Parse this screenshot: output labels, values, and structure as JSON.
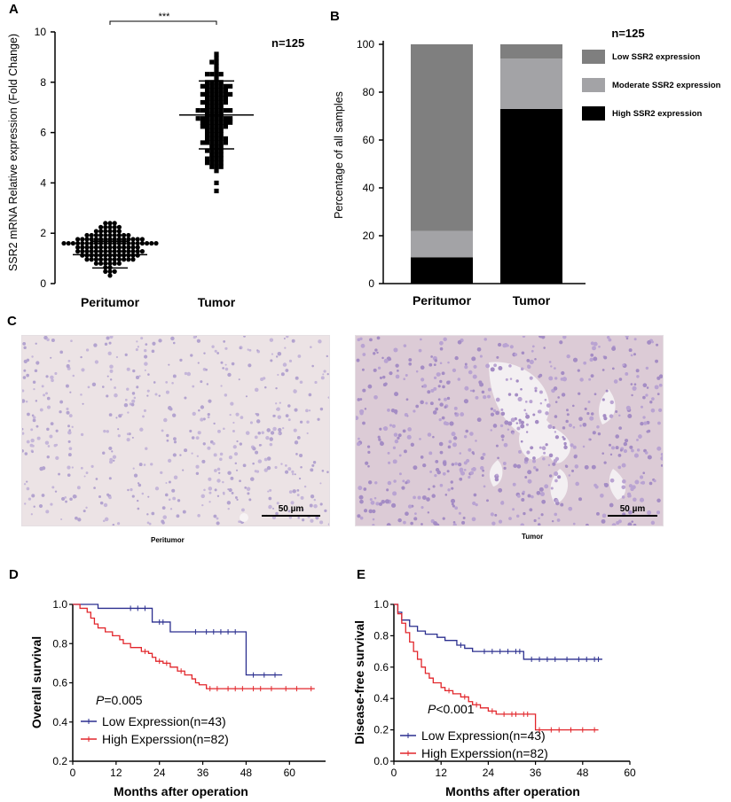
{
  "panels": {
    "a": "A",
    "b": "B",
    "c": "C",
    "d": "D",
    "e": "E"
  },
  "colors": {
    "low_km": "#2b2f8f",
    "high_km": "#e2262b"
  },
  "chart_data": [
    {
      "id": "A",
      "type": "scatter",
      "ylabel": "SSR2 mRNA Relative expression (Fold Change)",
      "xlabel": "",
      "categories": [
        "Peritumor",
        "Tumor"
      ],
      "ylim": [
        0,
        10
      ],
      "yticks": [
        0,
        2,
        4,
        6,
        8,
        10
      ],
      "n_label": "n=125",
      "significance": "***",
      "summary": [
        {
          "category": "Peritumor",
          "mean": 1.15,
          "sd_low": 0.62,
          "sd_high": 1.68,
          "min": 0.25,
          "max": 2.7
        },
        {
          "category": "Tumor",
          "mean": 6.7,
          "sd_low": 5.35,
          "sd_high": 8.05,
          "min": 3.15,
          "max": 9.95
        }
      ]
    },
    {
      "id": "B",
      "type": "bar",
      "stacked": true,
      "categories": [
        "Peritumor",
        "Tumor"
      ],
      "ylabel": "Percentage of all samples",
      "ylim": [
        0,
        100
      ],
      "yticks": [
        0,
        20,
        40,
        60,
        80,
        100
      ],
      "legend_title": "n=125",
      "legend_position": "right",
      "series": [
        {
          "name": "High SSR2 expression",
          "color": "#000000",
          "values": [
            11,
            73
          ]
        },
        {
          "name": "Moderate SSR2 expression",
          "color": "#a3a3a6",
          "values": [
            11,
            21
          ]
        },
        {
          "name": "Low SSR2 expression",
          "color": "#7f7f7f",
          "values": [
            78,
            6
          ]
        }
      ]
    },
    {
      "id": "D",
      "type": "line",
      "subtype": "kaplan-meier",
      "xlabel": "Months after operation",
      "ylabel": "Overall survival",
      "xlim": [
        0,
        70
      ],
      "xticks": [
        0,
        12,
        24,
        36,
        48,
        60
      ],
      "ylim": [
        0.2,
        1.0
      ],
      "yticks": [
        "0.2",
        "0.4",
        "0.6",
        "0.8",
        "1.0"
      ],
      "p_prefix": "P",
      "p_value": "=0.005",
      "series": [
        {
          "name": "Low Expression(n=43)",
          "color": "#2b2f8f",
          "x": [
            0,
            7,
            22,
            27,
            48,
            58
          ],
          "y": [
            1.0,
            0.98,
            0.91,
            0.86,
            0.64,
            0.64
          ],
          "censor_x": [
            16,
            18,
            20,
            24,
            25,
            34,
            37,
            39,
            41,
            43,
            45,
            50,
            53,
            56
          ]
        },
        {
          "name": "High Experssion(n=82)",
          "color": "#e2262b",
          "x": [
            0,
            2,
            4,
            5,
            6,
            7,
            9,
            11,
            13,
            14,
            16,
            19,
            21,
            22,
            23,
            25,
            27,
            29,
            31,
            33,
            34,
            35,
            37,
            67
          ],
          "y": [
            1.0,
            0.98,
            0.96,
            0.93,
            0.9,
            0.88,
            0.86,
            0.84,
            0.82,
            0.8,
            0.78,
            0.76,
            0.75,
            0.73,
            0.71,
            0.7,
            0.68,
            0.66,
            0.64,
            0.62,
            0.6,
            0.59,
            0.57,
            0.57
          ],
          "censor_x": [
            20,
            24,
            26,
            30,
            38,
            40,
            43,
            45,
            47,
            50,
            52,
            55,
            59,
            62,
            66
          ]
        }
      ]
    },
    {
      "id": "E",
      "type": "line",
      "subtype": "kaplan-meier",
      "xlabel": "Months after operation",
      "ylabel": "Disease-free survival",
      "xlim": [
        0,
        60
      ],
      "xticks": [
        0,
        12,
        24,
        36,
        48,
        60
      ],
      "ylim": [
        0.0,
        1.0
      ],
      "yticks": [
        "0.0",
        "0.2",
        "0.4",
        "0.6",
        "0.8",
        "1.0"
      ],
      "p_prefix": "P",
      "p_value": "<0.001",
      "series": [
        {
          "name": "Low Expression(n=43)",
          "color": "#2b2f8f",
          "x": [
            0,
            1,
            2,
            4,
            6,
            8,
            11,
            13,
            16,
            18,
            20,
            22,
            33,
            53
          ],
          "y": [
            1.0,
            0.95,
            0.9,
            0.86,
            0.83,
            0.81,
            0.79,
            0.77,
            0.74,
            0.72,
            0.7,
            0.7,
            0.65,
            0.65
          ],
          "censor_x": [
            17,
            23,
            25,
            27,
            29,
            31,
            32,
            35,
            37,
            39,
            41,
            44,
            47,
            49,
            51,
            52
          ]
        },
        {
          "name": "High Experssion(n=82)",
          "color": "#e2262b",
          "x": [
            0,
            1,
            2,
            3,
            4,
            5,
            6,
            7,
            8,
            9,
            10,
            12,
            13,
            15,
            17,
            19,
            20,
            22,
            24,
            26,
            27,
            36,
            52
          ],
          "y": [
            1.0,
            0.94,
            0.88,
            0.82,
            0.76,
            0.7,
            0.65,
            0.6,
            0.56,
            0.53,
            0.5,
            0.47,
            0.45,
            0.43,
            0.41,
            0.38,
            0.36,
            0.34,
            0.32,
            0.3,
            0.3,
            0.2,
            0.2
          ],
          "censor_x": [
            14,
            18,
            21,
            25,
            28,
            30,
            31,
            33,
            34,
            37,
            40,
            42,
            45,
            48,
            51
          ]
        }
      ]
    }
  ],
  "histology": {
    "left_caption": "Peritumor",
    "right_caption": "Tumor",
    "scale_label": "50 µm"
  }
}
